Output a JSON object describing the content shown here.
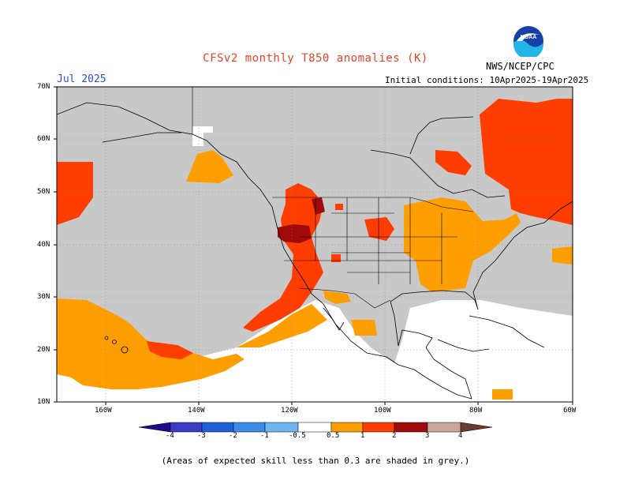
{
  "header": {
    "title": "CFSv2 monthly T850 anomalies (K)",
    "month": "Jul 2025",
    "initial_conditions": "Initial conditions: 10Apr2025-19Apr2025",
    "agency": "NWS/NCEP/CPC",
    "logo_text": "NOAA"
  },
  "axes": {
    "lat_labels": [
      "70N",
      "60N",
      "50N",
      "40N",
      "30N",
      "20N",
      "10N"
    ],
    "lon_labels": [
      "160W",
      "140W",
      "120W",
      "100W",
      "80W",
      "60W"
    ]
  },
  "legend": {
    "labels": [
      "-4",
      "-3",
      "-2",
      "-1",
      "-0.5",
      "0.5",
      "1",
      "2",
      "3",
      "4"
    ],
    "colors": [
      "#1f0b8c",
      "#3a3cc4",
      "#1f5fd6",
      "#3a8ce8",
      "#6fb6f0",
      "#ffffff",
      "#ff9e00",
      "#ff3d00",
      "#a00a0a",
      "#caa79a",
      "#6b3b2d"
    ]
  },
  "map_colors": {
    "grey": "#c8c8c8",
    "ocean": "#ffffff",
    "anomaly_05_1": "#ff9e00",
    "anomaly_1_2": "#ff3d00",
    "anomaly_2_3": "#a00a0a"
  },
  "footer": "(Areas of expected skill less than 0.3 are shaded in grey.)"
}
